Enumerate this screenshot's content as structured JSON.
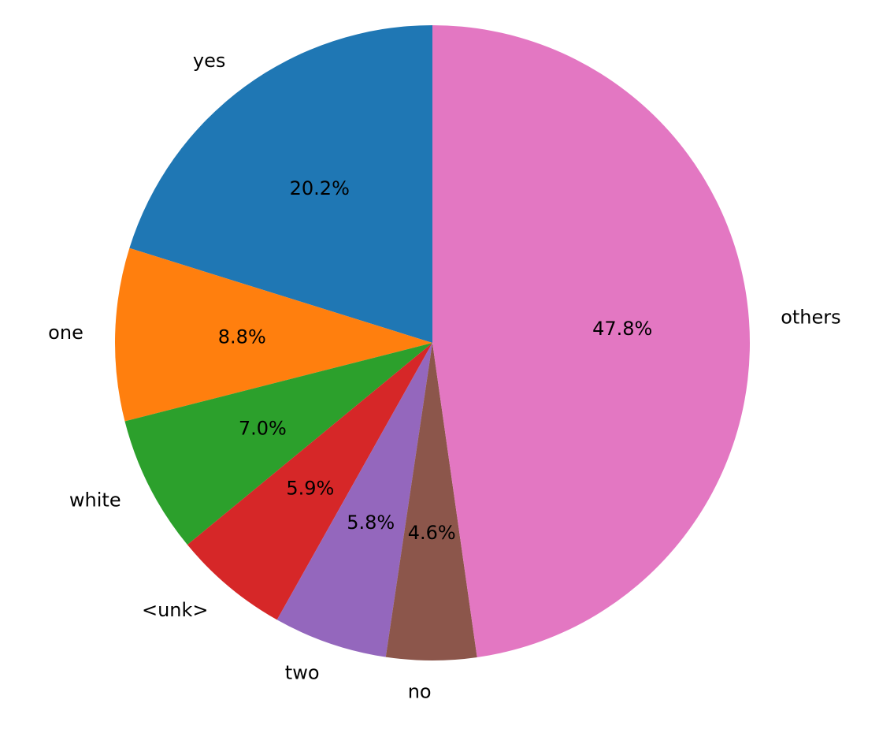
{
  "chart_data": {
    "type": "pie",
    "categories": [
      "yes",
      "one",
      "white",
      "<unk>",
      "two",
      "no",
      "others"
    ],
    "values": [
      20.2,
      8.8,
      7.0,
      5.9,
      5.8,
      4.6,
      47.8
    ],
    "value_labels": [
      "20.2%",
      "8.8%",
      "7.0%",
      "5.9%",
      "5.8%",
      "4.6%",
      "47.8%"
    ],
    "colors": [
      "#1f77b4",
      "#ff7f0e",
      "#2ca02c",
      "#d62728",
      "#9467bd",
      "#8c564b",
      "#e377c2"
    ]
  }
}
